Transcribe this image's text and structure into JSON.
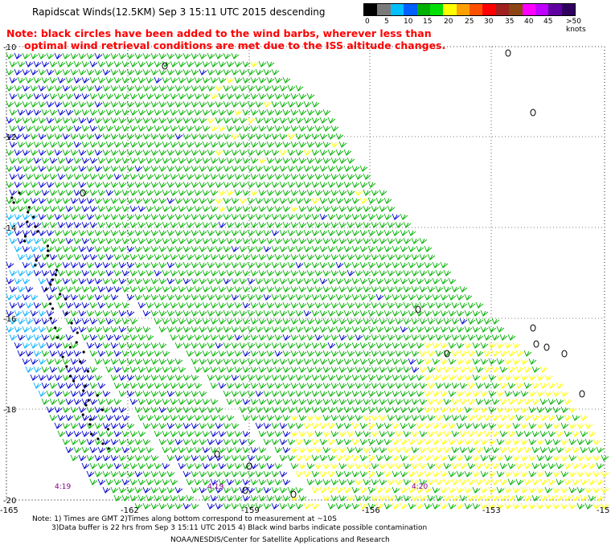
{
  "title": "Rapidscat Winds(12.5KM) Sep  3 15:11 UTC 2015 descending",
  "note_line1": "Note: black circles have been added to the wind barbs, wherever less than",
  "note_line2": "optimal wind retrieval conditions are met due to the ISS altitude changes.",
  "colorbar": {
    "colors": [
      "#000000",
      "#7a7a7a",
      "#00c0ff",
      "#0060ff",
      "#00b000",
      "#00e000",
      "#ffff00",
      "#ffa000",
      "#ff5000",
      "#ff0000",
      "#a02020",
      "#8b4513",
      "#ff00ff",
      "#c000ff",
      "#6000a0",
      "#300060"
    ],
    "labels": [
      "0",
      "5",
      "10",
      "15",
      "20",
      "25",
      "30",
      "35",
      "40",
      "45",
      ">50 knots"
    ]
  },
  "axes": {
    "lat_labels": [
      "-10",
      "-12",
      "-14",
      "-16",
      "-18",
      "-20"
    ],
    "lon_labels": [
      "-165",
      "-162",
      "-159",
      "-156",
      "-153",
      "-15"
    ]
  },
  "time_labels": [
    "4:19",
    "4:19",
    "4:20"
  ],
  "footer": {
    "line1": "Note: 1) Times are GMT 2)Times along bottom correspond to measurement at ~10S",
    "line2": "3)Data buffer is 22 hrs from Sep  3 15:11 UTC 2015 4) Black wind barbs indicate possible contamination",
    "line3": "NOAA/NESDIS/Center for Satellite Applications and Research"
  },
  "map_style": {
    "graticule_color": "#000000",
    "barb_colors": {
      "calm": "#000000",
      "light": "#00b0ff",
      "moderate": "#0000cc",
      "fresh": "#00b000",
      "strong": "#ffff00"
    }
  }
}
